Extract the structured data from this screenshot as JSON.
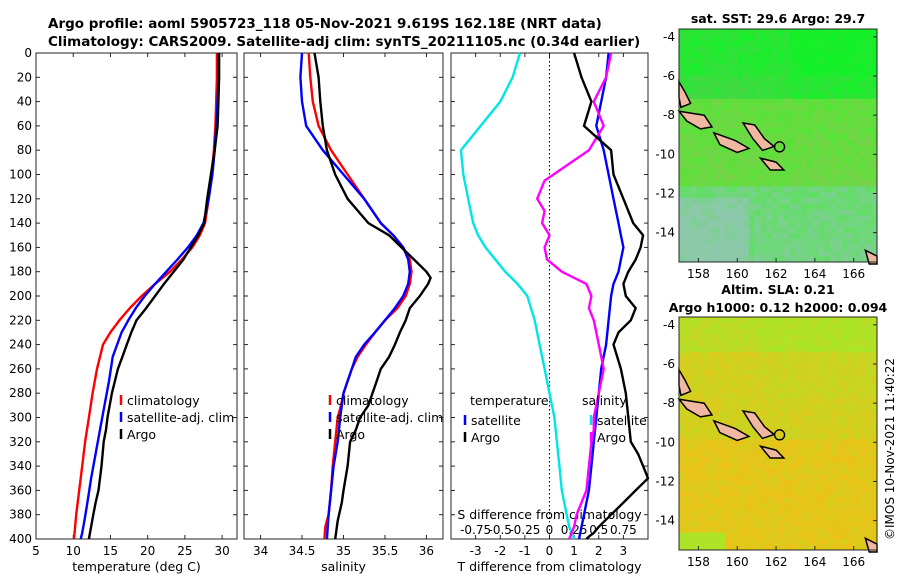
{
  "title": {
    "line1": "Argo profile: aoml 5905723_118 05-Nov-2021 9.619S 162.18E (NRT data)",
    "line2": "Climatology: CARS2009. Satellite-adj clim: synTS_20211105.nc (0.34d earlier)"
  },
  "colors": {
    "climatology": "#ff0000",
    "satellite": "#0000ff",
    "argo": "#000000",
    "t_diff": "#00e5e5",
    "s_diff": "#ff00ff"
  },
  "timestamp_label": "©IMOS 10-Nov-2021 11:40:22",
  "chart_data": [
    {
      "type": "line",
      "name": "temperature",
      "xlabel": "temperature (deg C)",
      "xlim": [
        5,
        32
      ],
      "ylim": [
        400,
        0
      ],
      "xticks": [
        "5",
        "10",
        "15",
        "20",
        "25",
        "30"
      ],
      "yticks": [
        "0",
        "20",
        "40",
        "60",
        "80",
        "100",
        "120",
        "140",
        "160",
        "180",
        "200",
        "220",
        "240",
        "260",
        "280",
        "300",
        "320",
        "340",
        "360",
        "380",
        "400"
      ],
      "legend": [
        "climatology",
        "satellite-adj. clim",
        "Argo"
      ],
      "series": [
        {
          "name": "climatology",
          "x": [
            29.3,
            29.3,
            29.2,
            29.1,
            28.9,
            28.6,
            28.2,
            27.7,
            27.0,
            26.0,
            24.6,
            23.0,
            21.0,
            19.2,
            17.6,
            16.2,
            15.0,
            14.0,
            13.2,
            12.6,
            12.1,
            11.6,
            11.2,
            10.8,
            10.4,
            10.1
          ],
          "y": [
            0,
            20,
            40,
            60,
            80,
            100,
            120,
            140,
            150,
            160,
            170,
            180,
            190,
            200,
            210,
            220,
            230,
            240,
            260,
            280,
            300,
            320,
            340,
            360,
            380,
            400
          ]
        },
        {
          "name": "satellite",
          "x": [
            29.5,
            29.5,
            29.4,
            29.2,
            29.0,
            28.7,
            28.2,
            27.5,
            26.6,
            25.4,
            24.0,
            22.5,
            21.0,
            19.6,
            18.4,
            17.4,
            16.5,
            15.3,
            14.8,
            14.2,
            13.6,
            13.0,
            12.4,
            11.9,
            11.5,
            11.2,
            11.0
          ],
          "y": [
            0,
            20,
            40,
            60,
            80,
            100,
            120,
            140,
            150,
            160,
            170,
            180,
            190,
            200,
            210,
            220,
            230,
            250,
            270,
            290,
            310,
            330,
            350,
            370,
            385,
            395,
            400
          ]
        },
        {
          "name": "argo",
          "x": [
            29.6,
            29.6,
            29.5,
            29.4,
            29.0,
            28.5,
            28.0,
            27.6,
            26.8,
            25.8,
            24.8,
            23.5,
            22.2,
            21.0,
            19.8,
            18.5,
            17.8,
            17.2,
            16.6,
            16.0,
            15.6,
            15.2,
            14.9,
            14.6,
            14.4,
            14.1,
            13.8,
            13.4,
            13.0,
            12.7,
            12.4,
            12.1
          ],
          "y": [
            0,
            20,
            40,
            60,
            80,
            100,
            120,
            140,
            150,
            160,
            170,
            180,
            190,
            200,
            210,
            220,
            230,
            240,
            250,
            260,
            270,
            280,
            290,
            300,
            310,
            320,
            340,
            360,
            370,
            380,
            390,
            400
          ]
        }
      ]
    },
    {
      "type": "line",
      "name": "salinity",
      "xlabel": "salinity",
      "xlim": [
        33.8,
        36.2
      ],
      "ylim": [
        400,
        0
      ],
      "xticks": [
        "34",
        "34.5",
        "35",
        "35.5",
        "36"
      ],
      "legend": [
        "climatology",
        "satellite-adj. clim",
        "Argo"
      ],
      "series": [
        {
          "name": "climatology",
          "x": [
            34.58,
            34.6,
            34.63,
            34.7,
            34.85,
            35.05,
            35.25,
            35.45,
            35.6,
            35.72,
            35.8,
            35.82,
            35.8,
            35.75,
            35.65,
            35.5,
            35.38,
            35.27,
            35.17,
            35.1,
            35.05,
            35.0,
            34.97,
            34.93,
            34.9,
            34.87,
            34.85,
            34.82,
            34.78,
            34.77
          ],
          "y": [
            0,
            20,
            40,
            60,
            80,
            100,
            120,
            140,
            150,
            160,
            170,
            180,
            190,
            200,
            210,
            220,
            230,
            240,
            250,
            260,
            270,
            280,
            290,
            300,
            320,
            340,
            360,
            380,
            390,
            400
          ]
        },
        {
          "name": "satellite",
          "x": [
            34.5,
            34.48,
            34.5,
            34.55,
            34.75,
            35.0,
            35.25,
            35.45,
            35.6,
            35.72,
            35.78,
            35.8,
            35.78,
            35.72,
            35.62,
            35.5,
            35.38,
            35.25,
            35.15,
            35.1,
            35.05,
            35.0,
            34.96,
            34.93,
            34.88,
            34.85,
            34.82,
            34.8
          ],
          "y": [
            0,
            20,
            40,
            60,
            80,
            100,
            120,
            140,
            150,
            160,
            170,
            180,
            190,
            200,
            210,
            220,
            230,
            240,
            250,
            260,
            270,
            280,
            300,
            320,
            340,
            360,
            380,
            400
          ]
        },
        {
          "name": "argo",
          "x": [
            34.65,
            34.7,
            34.72,
            34.75,
            34.8,
            34.9,
            35.05,
            35.3,
            35.55,
            35.7,
            35.85,
            36.0,
            36.05,
            36.02,
            35.92,
            35.8,
            35.75,
            35.68,
            35.62,
            35.55,
            35.45,
            35.4,
            35.35,
            35.3,
            35.2,
            35.15,
            35.08,
            35.05,
            35.0,
            34.98,
            34.93,
            34.9
          ],
          "y": [
            0,
            20,
            40,
            60,
            80,
            100,
            120,
            140,
            150,
            160,
            170,
            180,
            185,
            190,
            200,
            210,
            220,
            230,
            240,
            250,
            260,
            270,
            280,
            290,
            300,
            310,
            320,
            340,
            360,
            370,
            385,
            400
          ]
        }
      ]
    },
    {
      "type": "line",
      "name": "difference_from_climatology",
      "xlabel": "T difference from climatology",
      "xlabel_top": "S difference from climatology",
      "xlim": [
        -4,
        4
      ],
      "ylim": [
        400,
        0
      ],
      "xticks": [
        "-3",
        "-2",
        "-1",
        "0",
        "1",
        "2",
        "3"
      ],
      "xticks_top": [
        "-0.75",
        "-0.5",
        "-0.25",
        "0",
        "0.25",
        "0.5",
        "0.75"
      ],
      "legend": {
        "temperature": "temperature",
        "salinity": "salinity",
        "items": [
          "satellite",
          "Argo"
        ]
      },
      "series": [
        {
          "name": "T satellite",
          "x": [
            -1.2,
            -1.5,
            -2.0,
            -2.8,
            -3.6,
            -3.5,
            -3.3,
            -3.1,
            -2.9,
            -2.6,
            -2.2,
            -1.8,
            -1.3,
            -0.9,
            -0.6,
            -0.4,
            -0.2,
            0.0,
            0.2,
            0.3,
            0.4,
            0.5,
            0.6,
            0.7,
            0.8,
            0.9,
            1.0
          ],
          "y": [
            0,
            20,
            40,
            60,
            80,
            100,
            120,
            140,
            150,
            160,
            170,
            180,
            190,
            200,
            220,
            240,
            260,
            280,
            300,
            320,
            340,
            360,
            370,
            380,
            390,
            395,
            400
          ]
        },
        {
          "name": "S satellite",
          "x": [
            2.4,
            2.3,
            2.1,
            1.9,
            2.2,
            2.4,
            2.6,
            2.8,
            2.9,
            3.0,
            2.9,
            2.8,
            2.6,
            2.5,
            2.4,
            2.3,
            2.1,
            2.0,
            1.9,
            1.8,
            1.7,
            1.6,
            1.4,
            1.2
          ],
          "y": [
            0,
            20,
            40,
            60,
            80,
            100,
            120,
            140,
            150,
            160,
            170,
            180,
            190,
            200,
            220,
            240,
            260,
            280,
            300,
            320,
            340,
            360,
            380,
            400
          ]
        },
        {
          "name": "S Argo",
          "x": [
            2.5,
            2.4,
            2.3,
            1.8,
            2.2,
            1.6,
            -0.2,
            -0.5,
            -0.2,
            -0.3,
            0.0,
            -0.2,
            -0.1,
            0.2,
            0.5,
            1.0,
            1.5,
            1.7,
            1.6,
            1.8,
            2.0,
            2.2,
            2.0,
            1.8,
            1.8,
            1.7,
            1.6,
            1.5,
            1.3,
            1.1,
            1.0,
            0.9,
            0.8
          ],
          "y": [
            0,
            10,
            20,
            40,
            60,
            80,
            105,
            120,
            130,
            140,
            150,
            160,
            170,
            175,
            180,
            185,
            190,
            200,
            210,
            220,
            240,
            260,
            280,
            300,
            310,
            320,
            340,
            360,
            370,
            380,
            390,
            395,
            400
          ]
        },
        {
          "name": "T Argo",
          "x": [
            1.0,
            1.3,
            1.7,
            1.4,
            2.5,
            2.6,
            3.0,
            3.4,
            3.8,
            3.7,
            3.5,
            3.2,
            3.0,
            3.1,
            3.5,
            3.3,
            2.8,
            2.6,
            2.9,
            3.1,
            3.2,
            3.3,
            3.6,
            3.8,
            4.0,
            3.5,
            3.0,
            2.5,
            2.0,
            1.8,
            1.6,
            1.5
          ],
          "y": [
            0,
            20,
            40,
            60,
            80,
            100,
            120,
            140,
            150,
            160,
            170,
            180,
            190,
            200,
            210,
            220,
            230,
            240,
            260,
            280,
            300,
            320,
            330,
            340,
            350,
            360,
            370,
            380,
            390,
            395,
            398,
            400
          ]
        }
      ]
    },
    {
      "type": "heatmap",
      "name": "sst_map",
      "title": "sat. SST: 29.6 Argo: 29.7",
      "xlim": [
        157,
        167.2
      ],
      "ylim": [
        -15.5,
        -3.6
      ],
      "xticks": [
        "158",
        "160",
        "162",
        "164",
        "166"
      ],
      "yticks": [
        "-4",
        "-6",
        "-8",
        "-10",
        "-12",
        "-14"
      ],
      "profile_lon": 162.18,
      "profile_lat": -9.619
    },
    {
      "type": "heatmap",
      "name": "sla_map",
      "title": "Altim. SLA: 0.21",
      "subtitle": "Argo h1000: 0.12 h2000: 0.094",
      "xlim": [
        157,
        167.2
      ],
      "ylim": [
        -15.5,
        -3.6
      ],
      "xticks": [
        "158",
        "160",
        "162",
        "164",
        "166"
      ],
      "yticks": [
        "-4",
        "-6",
        "-8",
        "-10",
        "-12",
        "-14"
      ],
      "profile_lon": 162.18,
      "profile_lat": -9.619
    }
  ]
}
